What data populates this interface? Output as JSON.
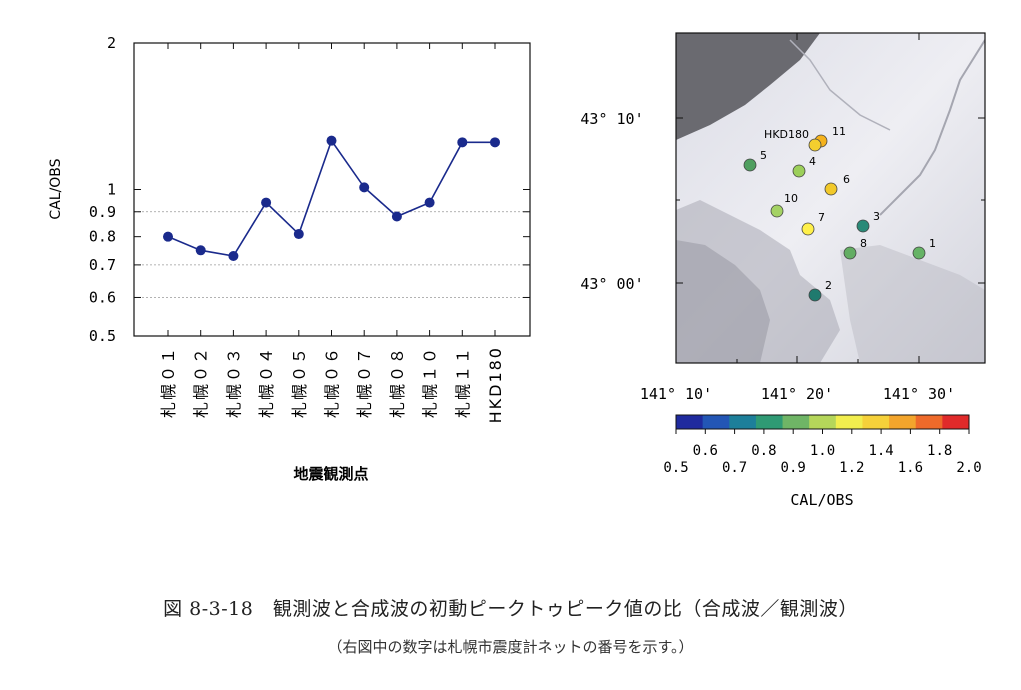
{
  "chart_data": [
    {
      "type": "line",
      "xlabel": "地震観測点",
      "ylabel": "CAL/OBS",
      "yscale": "log",
      "ylim": [
        0.5,
        2
      ],
      "yticks": [
        "0.5",
        "0.6",
        "0.7",
        "0.8",
        "0.9",
        "1",
        "2"
      ],
      "categories": [
        "札幌０１",
        "札幌０２",
        "札幌０３",
        "札幌０４",
        "札幌０５",
        "札幌０６",
        "札幌０７",
        "札幌０８",
        "札幌１０",
        "札幌１１",
        "HKD180"
      ],
      "series": [
        {
          "values": [
            0.8,
            0.75,
            0.73,
            0.94,
            0.81,
            1.26,
            1.01,
            0.88,
            0.94,
            1.25,
            1.25
          ],
          "color": "#1a2a8c"
        }
      ],
      "grid": "horizontal dotted at 0.6, 0.7, 0.9"
    },
    {
      "type": "scatter",
      "map": true,
      "ylabels": [
        "43° 10'",
        "43° 00'"
      ],
      "xlabels": [
        "141° 10'",
        "141° 20'",
        "141° 30'"
      ],
      "stations": [
        {
          "label": "1",
          "value": 0.85,
          "color": "#66b366"
        },
        {
          "label": "2",
          "value": 0.72,
          "color": "#1f7a6e"
        },
        {
          "label": "3",
          "value": 0.75,
          "color": "#2a8a78"
        },
        {
          "label": "4",
          "value": 0.95,
          "color": "#9ccf5a"
        },
        {
          "label": "5",
          "value": 0.82,
          "color": "#4f9f5f"
        },
        {
          "label": "6",
          "value": 1.2,
          "color": "#f2c92a"
        },
        {
          "label": "7",
          "value": 1.1,
          "color": "#fff04a"
        },
        {
          "label": "8",
          "value": 0.85,
          "color": "#63ad63"
        },
        {
          "label": "10",
          "value": 0.94,
          "color": "#a4d264"
        },
        {
          "label": "11",
          "value": 1.25,
          "color": "#f5b21c"
        },
        {
          "label": "HKD180",
          "value": 1.25,
          "color": "#f3cf2e"
        }
      ],
      "colorbar": {
        "label": "CAL/OBS",
        "colors": [
          "#1f2a9e",
          "#2356b5",
          "#1d7f9a",
          "#2f9a74",
          "#6fb566",
          "#b5d65a",
          "#f2ee4e",
          "#f6d13a",
          "#f3a52c",
          "#ee6a2a",
          "#e02a2a"
        ],
        "ticks_upper": [
          "0.6",
          "0.8",
          "1.0",
          "1.4",
          "1.8"
        ],
        "ticks_lower": [
          "0.5",
          "0.7",
          "0.9",
          "1.2",
          "1.6",
          "2.0"
        ]
      }
    }
  ],
  "caption": {
    "main": "図 8-3-18　観測波と合成波の初動ピークトゥピーク値の比（合成波／観測波）",
    "sub": "（右図中の数字は札幌市震度計ネットの番号を示す。）"
  }
}
